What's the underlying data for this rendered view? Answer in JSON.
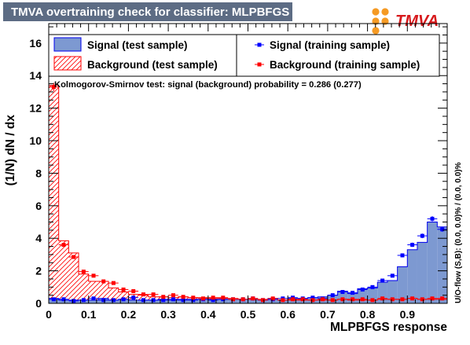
{
  "title": "TMVA overtraining check for classifier: MLPBFGS",
  "logo_text": "TMVA",
  "colors": {
    "title_bg": "#5d6c84",
    "signal_fill": "#7d99d1",
    "signal_line": "#0000ee",
    "background_line": "#ff0000",
    "signal_marker": "#0000ff",
    "background_marker": "#ff0000",
    "logo_orange": "#f59a23",
    "logo_red": "#d7191c"
  },
  "legend": {
    "signal_test": "Signal (test sample)",
    "background_test": "Background (test sample)",
    "signal_train": "Signal (training sample)",
    "background_train": "Background (training sample)"
  },
  "ks_text": "Kolmogorov-Smirnov test: signal (background) probability = 0.286 (0.277)",
  "overflow_text": "U/O-flow (S,B): (0.0, 0.0)% / (0.0, 0.0)%",
  "chart_data": {
    "type": "histogram",
    "xlabel": "MLPBFGS response",
    "ylabel": "(1/N) dN / dx",
    "xlim": [
      0,
      1
    ],
    "ylim": [
      0,
      17.2
    ],
    "xticks": [
      0,
      0.1,
      0.2,
      0.3,
      0.4,
      0.5,
      0.6,
      0.7,
      0.8,
      0.9
    ],
    "yticks": [
      0,
      2,
      4,
      6,
      8,
      10,
      12,
      14,
      16
    ],
    "bin_width": 0.025,
    "bin_edges_start": 0,
    "series": [
      {
        "name": "Signal (test sample)",
        "style": "filled-hist",
        "values": [
          0.3,
          0.2,
          0.2,
          0.2,
          0.2,
          0.3,
          0.2,
          0.25,
          0.2,
          0.2,
          0.2,
          0.25,
          0.2,
          0.25,
          0.25,
          0.25,
          0.25,
          0.25,
          0.25,
          0.25,
          0.25,
          0.2,
          0.3,
          0.2,
          0.3,
          0.3,
          0.35,
          0.4,
          0.5,
          0.75,
          0.6,
          0.9,
          0.95,
          1.3,
          1.4,
          2.25,
          3.3,
          3.75,
          5.0,
          4.7
        ]
      },
      {
        "name": "Background (test sample)",
        "style": "hatched-hist",
        "values": [
          13.4,
          3.85,
          3.1,
          1.8,
          1.35,
          1.35,
          0.95,
          0.7,
          0.55,
          0.5,
          0.4,
          0.4,
          0.35,
          0.4,
          0.35,
          0.35,
          0.3,
          0.3,
          0.3,
          0.25,
          0.25,
          0.25,
          0.25,
          0.2,
          0.2,
          0.2,
          0.2,
          0.2,
          0.2,
          0.25,
          0.2,
          0.2,
          0.2,
          0.25,
          0.25,
          0.25,
          0.3,
          0.25,
          0.25,
          0.25
        ]
      },
      {
        "name": "Signal (training sample)",
        "style": "markers",
        "values": [
          0.25,
          0.25,
          0.15,
          0.2,
          0.3,
          0.2,
          0.2,
          0.25,
          0.35,
          0.2,
          0.2,
          0.2,
          0.25,
          0.2,
          0.2,
          0.25,
          0.2,
          0.25,
          0.25,
          0.25,
          0.3,
          0.2,
          0.25,
          0.3,
          0.35,
          0.3,
          0.35,
          0.3,
          0.5,
          0.7,
          0.65,
          0.85,
          1.0,
          1.4,
          1.7,
          2.95,
          3.6,
          4.15,
          5.2,
          4.55
        ]
      },
      {
        "name": "Background (training sample)",
        "style": "markers",
        "values": [
          13.3,
          3.6,
          2.85,
          1.95,
          1.7,
          1.35,
          1.25,
          0.85,
          0.75,
          0.55,
          0.55,
          0.4,
          0.5,
          0.4,
          0.35,
          0.3,
          0.35,
          0.35,
          0.25,
          0.25,
          0.3,
          0.2,
          0.3,
          0.2,
          0.25,
          0.25,
          0.2,
          0.25,
          0.2,
          0.25,
          0.25,
          0.25,
          0.2,
          0.3,
          0.25,
          0.25,
          0.3,
          0.25,
          0.3,
          0.3
        ]
      }
    ]
  }
}
